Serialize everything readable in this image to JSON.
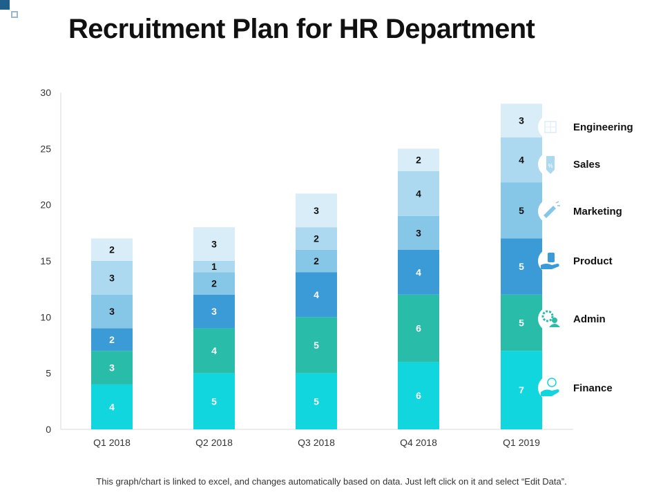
{
  "header": {
    "title": "Recruitment Plan for HR Department"
  },
  "footer": {
    "note": "This graph/chart is linked to excel, and changes automatically based on data. Just left click on it and select “Edit Data”."
  },
  "chart_data": {
    "type": "bar",
    "stacked": true,
    "title": "Recruitment Plan for HR Department",
    "xlabel": "",
    "ylabel": "",
    "ylim": [
      0,
      30
    ],
    "yticks": [
      "0",
      "5",
      "10",
      "15",
      "20",
      "25",
      "30"
    ],
    "grid": false,
    "legend_placement": "right",
    "categories": [
      "Q1 2018",
      "Q2 2018",
      "Q3 2018",
      "Q4 2018",
      "Q1 2019"
    ],
    "series": [
      {
        "name": "Finance",
        "values": [
          4,
          5,
          5,
          6,
          7
        ],
        "color": "#12d6de",
        "icon": "money-hand-icon"
      },
      {
        "name": "Admin",
        "values": [
          3,
          4,
          5,
          6,
          5
        ],
        "color": "#29bda9",
        "icon": "people-gear-icon"
      },
      {
        "name": "Product",
        "values": [
          2,
          3,
          4,
          4,
          5
        ],
        "color": "#3a9bd6",
        "icon": "box-hand-icon"
      },
      {
        "name": "Marketing",
        "values": [
          3,
          2,
          2,
          3,
          5
        ],
        "color": "#86c6e6",
        "icon": "megaphone-icon"
      },
      {
        "name": "Sales",
        "values": [
          3,
          1,
          2,
          4,
          4
        ],
        "color": "#acd9ef",
        "icon": "price-tag-icon"
      },
      {
        "name": "Engineering",
        "values": [
          2,
          3,
          3,
          2,
          3
        ],
        "color": "#d8edf8",
        "icon": "blueprint-icon"
      }
    ]
  }
}
